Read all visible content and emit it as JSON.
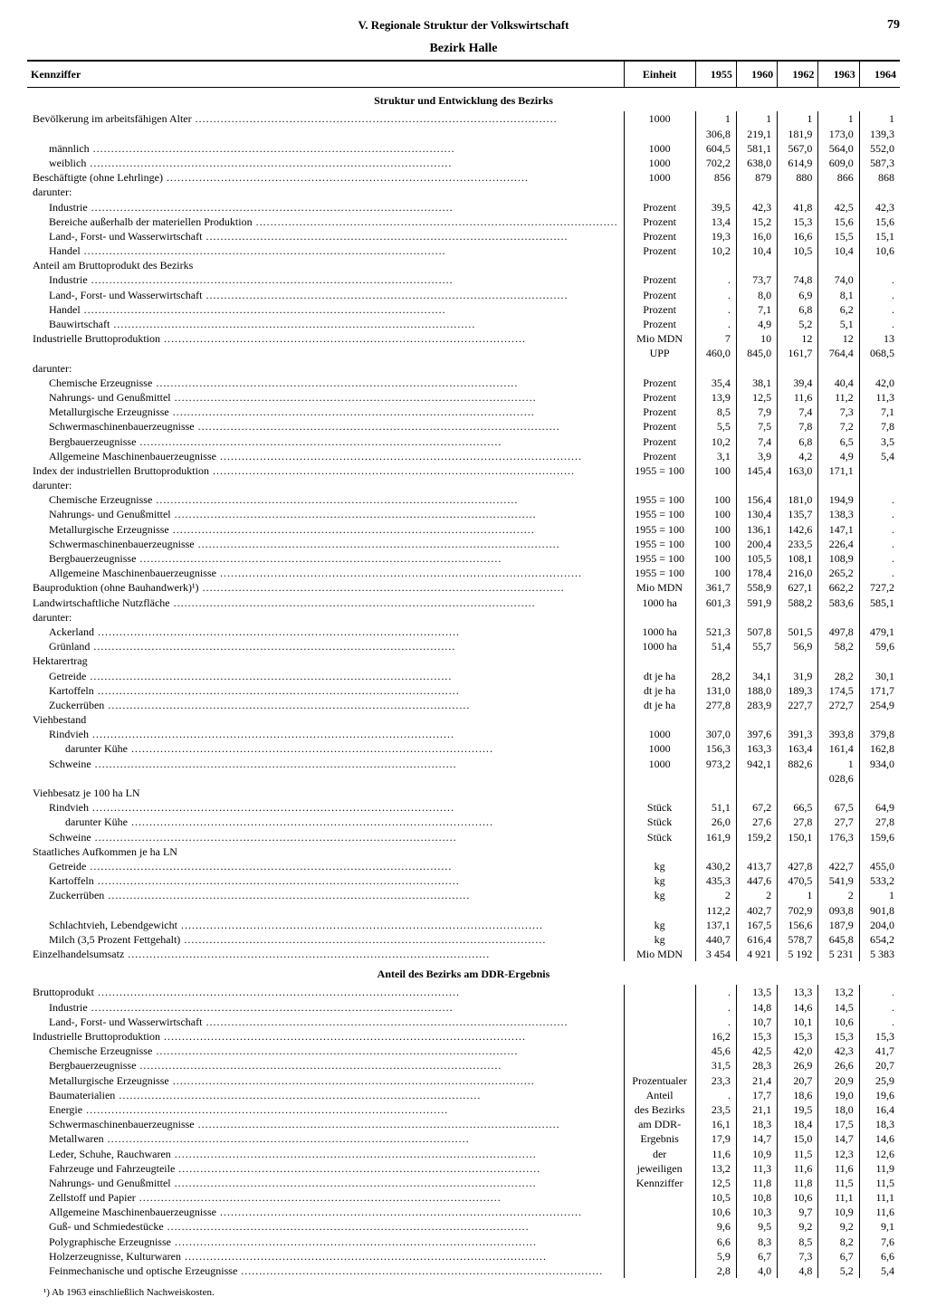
{
  "page": {
    "chapter": "V. Regionale Struktur der Volkswirtschaft",
    "number": "79",
    "region": "Bezirk Halle"
  },
  "headers": {
    "label": "Kennziffer",
    "unit": "Einheit",
    "years": [
      "1955",
      "1960",
      "1962",
      "1963",
      "1964"
    ]
  },
  "sections": [
    {
      "type": "section",
      "title": "Struktur und Entwicklung des Bezirks"
    },
    {
      "label": "Bevölkerung im arbeitsfähigen Alter",
      "indent": 0,
      "unit": "1000",
      "v": [
        "1 306,8",
        "1 219,1",
        "1 181,9",
        "1 173,0",
        "1 139,3"
      ]
    },
    {
      "label": "männlich",
      "indent": 1,
      "unit": "1000",
      "v": [
        "604,5",
        "581,1",
        "567,0",
        "564,0",
        "552,0"
      ]
    },
    {
      "label": "weiblich",
      "indent": 1,
      "unit": "1000",
      "v": [
        "702,2",
        "638,0",
        "614,9",
        "609,0",
        "587,3"
      ]
    },
    {
      "label": "Beschäftigte (ohne Lehrlinge)",
      "indent": 0,
      "unit": "1000",
      "v": [
        "856",
        "879",
        "880",
        "866",
        "868"
      ]
    },
    {
      "label": "darunter:",
      "indent": 0,
      "plain": true
    },
    {
      "label": "Industrie",
      "indent": 1,
      "unit": "Prozent",
      "v": [
        "39,5",
        "42,3",
        "41,8",
        "42,5",
        "42,3"
      ]
    },
    {
      "label": "Bereiche außerhalb der materiellen Produktion",
      "indent": 1,
      "unit": "Prozent",
      "v": [
        "13,4",
        "15,2",
        "15,3",
        "15,6",
        "15,6"
      ]
    },
    {
      "label": "Land-, Forst- und Wasserwirtschaft",
      "indent": 1,
      "unit": "Prozent",
      "v": [
        "19,3",
        "16,0",
        "16,6",
        "15,5",
        "15,1"
      ]
    },
    {
      "label": "Handel",
      "indent": 1,
      "unit": "Prozent",
      "v": [
        "10,2",
        "10,4",
        "10,5",
        "10,4",
        "10,6"
      ]
    },
    {
      "label": "Anteil am Bruttoprodukt des Bezirks",
      "indent": 0,
      "plain": true
    },
    {
      "label": "Industrie",
      "indent": 1,
      "unit": "Prozent",
      "v": [
        ".",
        "73,7",
        "74,8",
        "74,0",
        "."
      ]
    },
    {
      "label": "Land-, Forst- und Wasserwirtschaft",
      "indent": 1,
      "unit": "Prozent",
      "v": [
        ".",
        "8,0",
        "6,9",
        "8,1",
        "."
      ]
    },
    {
      "label": "Handel",
      "indent": 1,
      "unit": "Prozent",
      "v": [
        ".",
        "7,1",
        "6,8",
        "6,2",
        "."
      ]
    },
    {
      "label": "Bauwirtschaft",
      "indent": 1,
      "unit": "Prozent",
      "v": [
        ".",
        "4,9",
        "5,2",
        "5,1",
        "."
      ]
    },
    {
      "label": "Industrielle Bruttoproduktion",
      "indent": 0,
      "unit": "Mio MDN UPP",
      "v": [
        "7 460,0",
        "10 845,0",
        "12 161,7",
        "12 764,4",
        "13 068,5"
      ]
    },
    {
      "label": "darunter:",
      "indent": 0,
      "plain": true
    },
    {
      "label": "Chemische Erzeugnisse",
      "indent": 1,
      "unit": "Prozent",
      "v": [
        "35,4",
        "38,1",
        "39,4",
        "40,4",
        "42,0"
      ]
    },
    {
      "label": "Nahrungs- und Genußmittel",
      "indent": 1,
      "unit": "Prozent",
      "v": [
        "13,9",
        "12,5",
        "11,6",
        "11,2",
        "11,3"
      ]
    },
    {
      "label": "Metallurgische Erzeugnisse",
      "indent": 1,
      "unit": "Prozent",
      "v": [
        "8,5",
        "7,9",
        "7,4",
        "7,3",
        "7,1"
      ]
    },
    {
      "label": "Schwermaschinenbauerzeugnisse",
      "indent": 1,
      "unit": "Prozent",
      "v": [
        "5,5",
        "7,5",
        "7,8",
        "7,2",
        "7,8"
      ]
    },
    {
      "label": "Bergbauerzeugnisse",
      "indent": 1,
      "unit": "Prozent",
      "v": [
        "10,2",
        "7,4",
        "6,8",
        "6,5",
        "3,5"
      ]
    },
    {
      "label": "Allgemeine Maschinenbauerzeugnisse",
      "indent": 1,
      "unit": "Prozent",
      "v": [
        "3,1",
        "3,9",
        "4,2",
        "4,9",
        "5,4"
      ]
    },
    {
      "label": "Index der industriellen Bruttoproduktion",
      "indent": 0,
      "unit": "1955 = 100",
      "v": [
        "100",
        "145,4",
        "163,0",
        "171,1",
        ""
      ]
    },
    {
      "label": "darunter:",
      "indent": 0,
      "plain": true
    },
    {
      "label": "Chemische Erzeugnisse",
      "indent": 1,
      "unit": "1955 = 100",
      "v": [
        "100",
        "156,4",
        "181,0",
        "194,9",
        "."
      ]
    },
    {
      "label": "Nahrungs- und Genußmittel",
      "indent": 1,
      "unit": "1955 = 100",
      "v": [
        "100",
        "130,4",
        "135,7",
        "138,3",
        "."
      ]
    },
    {
      "label": "Metallurgische Erzeugnisse",
      "indent": 1,
      "unit": "1955 = 100",
      "v": [
        "100",
        "136,1",
        "142,6",
        "147,1",
        "."
      ]
    },
    {
      "label": "Schwermaschinenbauerzeugnisse",
      "indent": 1,
      "unit": "1955 = 100",
      "v": [
        "100",
        "200,4",
        "233,5",
        "226,4",
        "."
      ]
    },
    {
      "label": "Bergbauerzeugnisse",
      "indent": 1,
      "unit": "1955 = 100",
      "v": [
        "100",
        "105,5",
        "108,1",
        "108,9",
        "."
      ]
    },
    {
      "label": "Allgemeine Maschinenbauerzeugnisse",
      "indent": 1,
      "unit": "1955 = 100",
      "v": [
        "100",
        "178,4",
        "216,0",
        "265,2",
        "."
      ]
    },
    {
      "label": "Bauproduktion (ohne Bauhandwerk)¹)",
      "indent": 0,
      "unit": "Mio MDN",
      "v": [
        "361,7",
        "558,9",
        "627,1",
        "662,2",
        "727,2"
      ]
    },
    {
      "label": "Landwirtschaftliche Nutzfläche",
      "indent": 0,
      "unit": "1000 ha",
      "v": [
        "601,3",
        "591,9",
        "588,2",
        "583,6",
        "585,1"
      ]
    },
    {
      "label": "darunter:",
      "indent": 0,
      "plain": true
    },
    {
      "label": "Ackerland",
      "indent": 1,
      "unit": "1000 ha",
      "v": [
        "521,3",
        "507,8",
        "501,5",
        "497,8",
        "479,1"
      ]
    },
    {
      "label": "Grünland",
      "indent": 1,
      "unit": "1000 ha",
      "v": [
        "51,4",
        "55,7",
        "56,9",
        "58,2",
        "59,6"
      ]
    },
    {
      "label": "Hektarertrag",
      "indent": 0,
      "plain": true
    },
    {
      "label": "Getreide",
      "indent": 1,
      "unit": "dt je ha",
      "v": [
        "28,2",
        "34,1",
        "31,9",
        "28,2",
        "30,1"
      ]
    },
    {
      "label": "Kartoffeln",
      "indent": 1,
      "unit": "dt je ha",
      "v": [
        "131,0",
        "188,0",
        "189,3",
        "174,5",
        "171,7"
      ]
    },
    {
      "label": "Zuckerrüben",
      "indent": 1,
      "unit": "dt je ha",
      "v": [
        "277,8",
        "283,9",
        "227,7",
        "272,7",
        "254,9"
      ]
    },
    {
      "label": "Viehbestand",
      "indent": 0,
      "plain": true
    },
    {
      "label": "Rindvieh",
      "indent": 1,
      "unit": "1000",
      "v": [
        "307,0",
        "397,6",
        "391,3",
        "393,8",
        "379,8"
      ]
    },
    {
      "label": "darunter Kühe",
      "indent": 2,
      "unit": "1000",
      "v": [
        "156,3",
        "163,3",
        "163,4",
        "161,4",
        "162,8"
      ]
    },
    {
      "label": "Schweine",
      "indent": 1,
      "unit": "1000",
      "v": [
        "973,2",
        "942,1",
        "882,6",
        "1 028,6",
        "934,0"
      ]
    },
    {
      "label": "Viehbesatz je 100 ha LN",
      "indent": 0,
      "plain": true
    },
    {
      "label": "Rindvieh",
      "indent": 1,
      "unit": "Stück",
      "v": [
        "51,1",
        "67,2",
        "66,5",
        "67,5",
        "64,9"
      ]
    },
    {
      "label": "darunter Kühe",
      "indent": 2,
      "unit": "Stück",
      "v": [
        "26,0",
        "27,6",
        "27,8",
        "27,7",
        "27,8"
      ]
    },
    {
      "label": "Schweine",
      "indent": 1,
      "unit": "Stück",
      "v": [
        "161,9",
        "159,2",
        "150,1",
        "176,3",
        "159,6"
      ]
    },
    {
      "label": "Staatliches Aufkommen je ha LN",
      "indent": 0,
      "plain": true
    },
    {
      "label": "Getreide",
      "indent": 1,
      "unit": "kg",
      "v": [
        "430,2",
        "413,7",
        "427,8",
        "422,7",
        "455,0"
      ]
    },
    {
      "label": "Kartoffeln",
      "indent": 1,
      "unit": "kg",
      "v": [
        "435,3",
        "447,6",
        "470,5",
        "541,9",
        "533,2"
      ]
    },
    {
      "label": "Zuckerrüben",
      "indent": 1,
      "unit": "kg",
      "v": [
        "2 112,2",
        "2 402,7",
        "1 702,9",
        "2 093,8",
        "1 901,8"
      ]
    },
    {
      "label": "Schlachtvieh, Lebendgewicht",
      "indent": 1,
      "unit": "kg",
      "v": [
        "137,1",
        "167,5",
        "156,6",
        "187,9",
        "204,0"
      ]
    },
    {
      "label": "Milch (3,5 Prozent Fettgehalt)",
      "indent": 1,
      "unit": "kg",
      "v": [
        "440,7",
        "616,4",
        "578,7",
        "645,8",
        "654,2"
      ]
    },
    {
      "label": "Einzelhandelsumsatz",
      "indent": 0,
      "unit": "Mio MDN",
      "v": [
        "3 454",
        "4 921",
        "5 192",
        "5 231",
        "5 383"
      ]
    },
    {
      "type": "section",
      "title": "Anteil des Bezirks am DDR-Ergebnis"
    },
    {
      "label": "Bruttoprodukt",
      "indent": 0,
      "unitspan": true,
      "v": [
        ".",
        "13,5",
        "13,3",
        "13,2",
        "."
      ]
    },
    {
      "label": "Industrie",
      "indent": 1,
      "v": [
        ".",
        "14,8",
        "14,6",
        "14,5",
        "."
      ]
    },
    {
      "label": "Land-, Forst- und Wasserwirtschaft",
      "indent": 1,
      "v": [
        ".",
        "10,7",
        "10,1",
        "10,6",
        "."
      ]
    },
    {
      "label": "Industrielle Bruttoproduktion",
      "indent": 0,
      "v": [
        "16,2",
        "15,3",
        "15,3",
        "15,3",
        "15,3"
      ]
    },
    {
      "label": "Chemische Erzeugnisse",
      "indent": 1,
      "v": [
        "45,6",
        "42,5",
        "42,0",
        "42,3",
        "41,7"
      ]
    },
    {
      "label": "Bergbauerzeugnisse",
      "indent": 1,
      "v": [
        "31,5",
        "28,3",
        "26,9",
        "26,6",
        "20,7"
      ]
    },
    {
      "label": "Metallurgische Erzeugnisse",
      "indent": 1,
      "v": [
        "23,3",
        "21,4",
        "20,7",
        "20,9",
        "25,9"
      ]
    },
    {
      "label": "Baumaterialien",
      "indent": 1,
      "v": [
        ".",
        "17,7",
        "18,6",
        "19,0",
        "19,6"
      ]
    },
    {
      "label": "Energie",
      "indent": 1,
      "v": [
        "23,5",
        "21,1",
        "19,5",
        "18,0",
        "16,4"
      ]
    },
    {
      "label": "Schwermaschinenbauerzeugnisse",
      "indent": 1,
      "v": [
        "16,1",
        "18,3",
        "18,4",
        "17,5",
        "18,3"
      ]
    },
    {
      "label": "Metallwaren",
      "indent": 1,
      "v": [
        "17,9",
        "14,7",
        "15,0",
        "14,7",
        "14,6"
      ]
    },
    {
      "label": "Leder, Schuhe, Rauchwaren",
      "indent": 1,
      "v": [
        "11,6",
        "10,9",
        "11,5",
        "12,3",
        "12,6"
      ]
    },
    {
      "label": "Fahrzeuge und Fahrzeugteile",
      "indent": 1,
      "v": [
        "13,2",
        "11,3",
        "11,6",
        "11,6",
        "11,9"
      ]
    },
    {
      "label": "Nahrungs- und Genußmittel",
      "indent": 1,
      "v": [
        "12,5",
        "11,8",
        "11,8",
        "11,5",
        "11,5"
      ]
    },
    {
      "label": "Zellstoff und Papier",
      "indent": 1,
      "v": [
        "10,5",
        "10,8",
        "10,6",
        "11,1",
        "11,1"
      ]
    },
    {
      "label": "Allgemeine Maschinenbauerzeugnisse",
      "indent": 1,
      "v": [
        "10,6",
        "10,3",
        "9,7",
        "10,9",
        "11,6"
      ]
    },
    {
      "label": "Guß- und Schmiedestücke",
      "indent": 1,
      "v": [
        "9,6",
        "9,5",
        "9,2",
        "9,2",
        "9,1"
      ]
    },
    {
      "label": "Polygraphische Erzeugnisse",
      "indent": 1,
      "v": [
        "6,6",
        "8,3",
        "8,5",
        "8,2",
        "7,6"
      ]
    },
    {
      "label": "Holzerzeugnisse, Kulturwaren",
      "indent": 1,
      "v": [
        "5,9",
        "6,7",
        "7,3",
        "6,7",
        "6,6"
      ]
    },
    {
      "label": "Feinmechanische und optische Erzeugnisse",
      "indent": 1,
      "v": [
        "2,8",
        "4,0",
        "4,8",
        "5,2",
        "5,4"
      ]
    }
  ],
  "unitBlock": {
    "lines": [
      "Prozentualer Anteil",
      "des Bezirks",
      "am DDR-Ergebnis",
      "der jeweiligen",
      "Kennziffer"
    ]
  },
  "footnote": "¹) Ab 1963 einschließlich Nachweiskosten."
}
